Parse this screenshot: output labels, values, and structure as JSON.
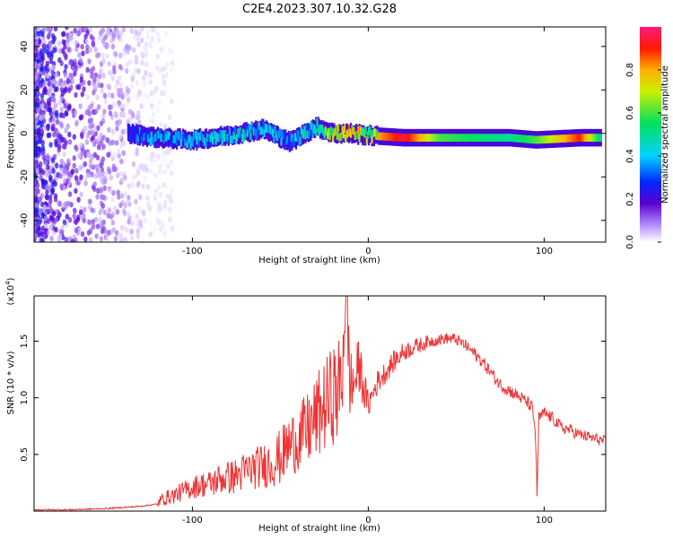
{
  "title": "C2E4.2023.307.10.32.G28",
  "chart_data": [
    {
      "type": "heatmap",
      "xlabel": "Height of straight line (km)",
      "ylabel": "Frequency (Hz)",
      "xlim": [
        -190,
        135
      ],
      "ylim": [
        -50,
        49
      ],
      "xticks": [
        -100,
        0,
        100
      ],
      "yticks": [
        -40,
        -20,
        0,
        20,
        40
      ],
      "colorbar": {
        "label": "Normalized spectral amplitude",
        "range": [
          0,
          1
        ],
        "ticks": [
          0.0,
          0.2,
          0.4,
          0.6,
          0.8
        ],
        "tick_labels": [
          "0.0",
          "0.2",
          "0.4",
          "0.6",
          "0.8"
        ],
        "colormap": "rainbow (white-violet-blue-cyan-green-yellow-red-magenta)"
      },
      "structures": {
        "noise_region": {
          "x": [
            -190,
            -115
          ],
          "frequency": [
            -50,
            49
          ],
          "amplitude": [
            0.0,
            0.3
          ]
        },
        "signal_band": [
          {
            "x": -137,
            "freq": 0,
            "amp": 0.35
          },
          {
            "x": -120,
            "freq": -2,
            "amp": 0.45
          },
          {
            "x": -100,
            "freq": -3,
            "amp": 0.45
          },
          {
            "x": -80,
            "freq": -1,
            "amp": 0.5
          },
          {
            "x": -60,
            "freq": 2,
            "amp": 0.5
          },
          {
            "x": -45,
            "freq": -4,
            "amp": 0.45
          },
          {
            "x": -30,
            "freq": 3,
            "amp": 0.55
          },
          {
            "x": -20,
            "freq": 0,
            "amp": 0.85
          },
          {
            "x": -10,
            "freq": 0,
            "amp": 0.9
          },
          {
            "x": 0,
            "freq": -1,
            "amp": 0.75
          },
          {
            "x": 20,
            "freq": -2,
            "amp": 0.95
          },
          {
            "x": 40,
            "freq": -2,
            "amp": 0.6
          },
          {
            "x": 60,
            "freq": -2,
            "amp": 0.55
          },
          {
            "x": 80,
            "freq": -2,
            "amp": 0.5
          },
          {
            "x": 95,
            "freq": -3,
            "amp": 0.6
          },
          {
            "x": 120,
            "freq": -2,
            "amp": 0.9
          },
          {
            "x": 132,
            "freq": -2,
            "amp": 0.5
          }
        ],
        "band_width_hz": 4
      }
    },
    {
      "type": "line",
      "xlabel": "Height of straight line (km)",
      "ylabel": "SNR (10 * v/v)",
      "yscale_label": "(x10",
      "yscale_exponent": "4",
      "xlim": [
        -190,
        135
      ],
      "ylim": [
        0,
        1.9
      ],
      "xticks": [
        -100,
        0,
        100
      ],
      "yticks": [
        0.5,
        1.0,
        1.5
      ],
      "ytick_labels": [
        "0.5",
        "1.0",
        "1.5"
      ],
      "color": "#ee3333",
      "series": [
        {
          "x": [
            -190,
            -170,
            -150,
            -140,
            -130,
            -120,
            -115,
            -110,
            -105,
            -100,
            -95,
            -90,
            -85,
            -80,
            -75,
            -70,
            -65,
            -60,
            -55,
            -50,
            -45,
            -40,
            -35,
            -30,
            -25,
            -22,
            -20,
            -17,
            -15,
            -13,
            -10,
            -8,
            -5,
            -2,
            0,
            5,
            10,
            15,
            20,
            25,
            30,
            35,
            40,
            45,
            50,
            55,
            60,
            65,
            70,
            75,
            80,
            85,
            90,
            93,
            95,
            96,
            97,
            100,
            105,
            110,
            115,
            120,
            125,
            130,
            135
          ],
          "y": [
            0.01,
            0.01,
            0.02,
            0.03,
            0.04,
            0.06,
            0.1,
            0.12,
            0.15,
            0.18,
            0.2,
            0.2,
            0.24,
            0.25,
            0.26,
            0.3,
            0.32,
            0.34,
            0.36,
            0.4,
            0.5,
            0.55,
            0.6,
            0.7,
            0.8,
            0.85,
            0.9,
            0.9,
            1.0,
            1.85,
            0.95,
            1.05,
            1.2,
            1.0,
            0.9,
            1.1,
            1.2,
            1.3,
            1.38,
            1.42,
            1.45,
            1.48,
            1.5,
            1.51,
            1.5,
            1.45,
            1.38,
            1.3,
            1.2,
            1.1,
            1.05,
            1.0,
            0.95,
            0.9,
            0.7,
            0.12,
            0.8,
            0.85,
            0.8,
            0.72,
            0.7,
            0.66,
            0.64,
            0.62,
            0.6
          ]
        }
      ],
      "features": {
        "noise_envelope": [
          {
            "x": -120,
            "amp": 0.05
          },
          {
            "x": -100,
            "amp": 0.1
          },
          {
            "x": -80,
            "amp": 0.15
          },
          {
            "x": -60,
            "amp": 0.2
          },
          {
            "x": -40,
            "amp": 0.3
          },
          {
            "x": -20,
            "amp": 0.45
          },
          {
            "x": -15,
            "amp": 0.5
          },
          {
            "x": 0,
            "amp": 0.12
          },
          {
            "x": 40,
            "amp": 0.05
          },
          {
            "x": 80,
            "amp": 0.06
          },
          {
            "x": 135,
            "amp": 0.05
          }
        ]
      }
    }
  ]
}
